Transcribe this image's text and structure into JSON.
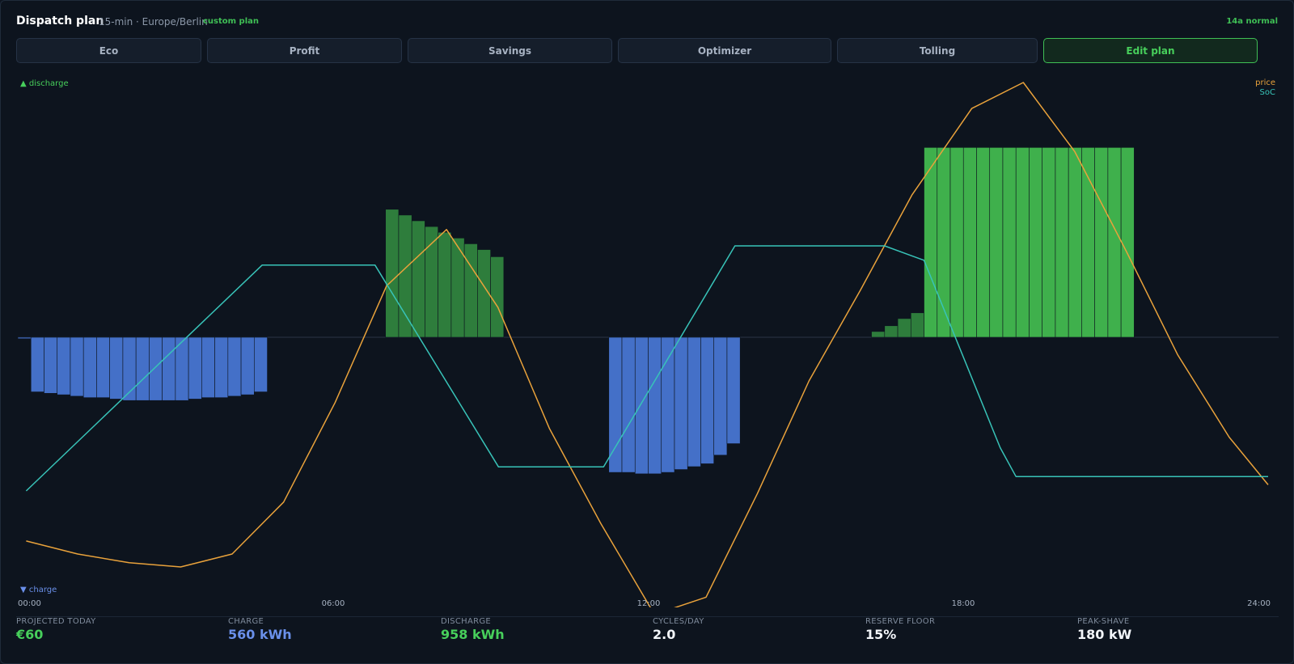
{
  "header": {
    "title": "Dispatch plan",
    "subtitle": "15-min · Europe/Berlin",
    "custom_badge": "custom plan",
    "status_badge": "14a normal"
  },
  "tabs": [
    {
      "label": "Eco",
      "active": false
    },
    {
      "label": "Profit",
      "active": false
    },
    {
      "label": "Savings",
      "active": false
    },
    {
      "label": "Optimizer",
      "active": false
    },
    {
      "label": "Tolling",
      "active": false
    },
    {
      "label": "Edit plan",
      "active": true
    }
  ],
  "chart_data": {
    "type": "bar+line",
    "legend_discharge": "▲ discharge",
    "legend_charge": "▼ charge",
    "legend_price": "price",
    "legend_soc": "SoC",
    "x_ticks": [
      "00:00",
      "06:00",
      "12:00",
      "18:00",
      "24:00"
    ],
    "x_range_hours": [
      0,
      24
    ],
    "power_range": [
      -180,
      180
    ],
    "power_series": [
      {
        "start": 0.0,
        "value": -1
      },
      {
        "start": 0.25,
        "value": -38
      },
      {
        "start": 0.5,
        "value": -39
      },
      {
        "start": 0.75,
        "value": -40
      },
      {
        "start": 1.0,
        "value": -41
      },
      {
        "start": 1.25,
        "value": -42
      },
      {
        "start": 1.5,
        "value": -42
      },
      {
        "start": 1.75,
        "value": -43
      },
      {
        "start": 2.0,
        "value": -44
      },
      {
        "start": 2.25,
        "value": -44
      },
      {
        "start": 2.5,
        "value": -44
      },
      {
        "start": 2.75,
        "value": -44
      },
      {
        "start": 3.0,
        "value": -44
      },
      {
        "start": 3.25,
        "value": -43
      },
      {
        "start": 3.5,
        "value": -42
      },
      {
        "start": 3.75,
        "value": -42
      },
      {
        "start": 4.0,
        "value": -41
      },
      {
        "start": 4.25,
        "value": -40
      },
      {
        "start": 4.5,
        "value": -38
      },
      {
        "start": 7.0,
        "value": 89
      },
      {
        "start": 7.25,
        "value": 85
      },
      {
        "start": 7.5,
        "value": 81
      },
      {
        "start": 7.75,
        "value": 77
      },
      {
        "start": 8.0,
        "value": 73
      },
      {
        "start": 8.25,
        "value": 69
      },
      {
        "start": 8.5,
        "value": 65
      },
      {
        "start": 8.75,
        "value": 61
      },
      {
        "start": 9.0,
        "value": 56
      },
      {
        "start": 11.25,
        "value": -94
      },
      {
        "start": 11.5,
        "value": -94
      },
      {
        "start": 11.75,
        "value": -95
      },
      {
        "start": 12.0,
        "value": -95
      },
      {
        "start": 12.25,
        "value": -94
      },
      {
        "start": 12.5,
        "value": -92
      },
      {
        "start": 12.75,
        "value": -90
      },
      {
        "start": 13.0,
        "value": -88
      },
      {
        "start": 13.25,
        "value": -82
      },
      {
        "start": 13.5,
        "value": -74
      },
      {
        "start": 16.25,
        "value": 4
      },
      {
        "start": 16.5,
        "value": 8
      },
      {
        "start": 16.75,
        "value": 13
      },
      {
        "start": 17.0,
        "value": 17
      },
      {
        "start": 17.25,
        "value": 132
      },
      {
        "start": 17.5,
        "value": 132
      },
      {
        "start": 17.75,
        "value": 132
      },
      {
        "start": 18.0,
        "value": 132
      },
      {
        "start": 18.25,
        "value": 132
      },
      {
        "start": 18.5,
        "value": 132
      },
      {
        "start": 18.75,
        "value": 132
      },
      {
        "start": 19.0,
        "value": 132
      },
      {
        "start": 19.25,
        "value": 132
      },
      {
        "start": 19.5,
        "value": 132
      },
      {
        "start": 19.75,
        "value": 132
      },
      {
        "start": 20.0,
        "value": 132
      },
      {
        "start": 20.25,
        "value": 132
      },
      {
        "start": 20.5,
        "value": 132
      },
      {
        "start": 20.75,
        "value": 132
      },
      {
        "start": 21.0,
        "value": 132
      }
    ],
    "price_series": [
      {
        "h": 0.16,
        "v": 0.06
      },
      {
        "h": 1.14,
        "v": 0.03
      },
      {
        "h": 2.12,
        "v": 0.01
      },
      {
        "h": 3.1,
        "v": 0.0
      },
      {
        "h": 4.08,
        "v": 0.03
      },
      {
        "h": 5.06,
        "v": 0.15
      },
      {
        "h": 6.04,
        "v": 0.38
      },
      {
        "h": 7.02,
        "v": 0.65
      },
      {
        "h": 8.16,
        "v": 0.78
      },
      {
        "h": 9.14,
        "v": 0.6
      },
      {
        "h": 10.12,
        "v": 0.32
      },
      {
        "h": 11.1,
        "v": 0.1
      },
      {
        "h": 12.12,
        "v": -0.11
      },
      {
        "h": 13.1,
        "v": -0.07
      },
      {
        "h": 14.08,
        "v": 0.17
      },
      {
        "h": 15.06,
        "v": 0.43
      },
      {
        "h": 16.04,
        "v": 0.64
      },
      {
        "h": 17.02,
        "v": 0.86
      },
      {
        "h": 18.16,
        "v": 1.06
      },
      {
        "h": 19.14,
        "v": 1.12
      },
      {
        "h": 20.12,
        "v": 0.96
      },
      {
        "h": 21.1,
        "v": 0.73
      },
      {
        "h": 22.08,
        "v": 0.49
      },
      {
        "h": 23.06,
        "v": 0.3
      },
      {
        "h": 23.8,
        "v": 0.19
      }
    ],
    "soc_series": [
      {
        "h": 0.16,
        "v": 15
      },
      {
        "h": 4.65,
        "v": 62
      },
      {
        "h": 6.8,
        "v": 62
      },
      {
        "h": 9.15,
        "v": 20
      },
      {
        "h": 11.15,
        "v": 20
      },
      {
        "h": 13.65,
        "v": 66
      },
      {
        "h": 16.5,
        "v": 66
      },
      {
        "h": 17.0,
        "v": 64
      },
      {
        "h": 17.25,
        "v": 63
      },
      {
        "h": 18.7,
        "v": 24
      },
      {
        "h": 19.0,
        "v": 18
      },
      {
        "h": 23.8,
        "v": 18
      }
    ]
  },
  "stats": [
    {
      "label": "PROJECTED TODAY",
      "value": "€60",
      "color": "green"
    },
    {
      "label": "CHARGE",
      "value": "560 kWh",
      "color": "blue"
    },
    {
      "label": "DISCHARGE",
      "value": "958 kWh",
      "color": "green"
    },
    {
      "label": "CYCLES/DAY",
      "value": "2.0",
      "color": "white"
    },
    {
      "label": "RESERVE FLOOR",
      "value": "15%",
      "color": "white"
    },
    {
      "label": "PEAK-SHAVE",
      "value": "180 kW",
      "color": "white"
    }
  ],
  "colors": {
    "discharge_low": "#2e7d3c",
    "discharge_high": "#3fb04c",
    "charge": "#4470c8",
    "price": "#e9a23b",
    "soc": "#38c3b8",
    "accent": "#47cf5b"
  }
}
